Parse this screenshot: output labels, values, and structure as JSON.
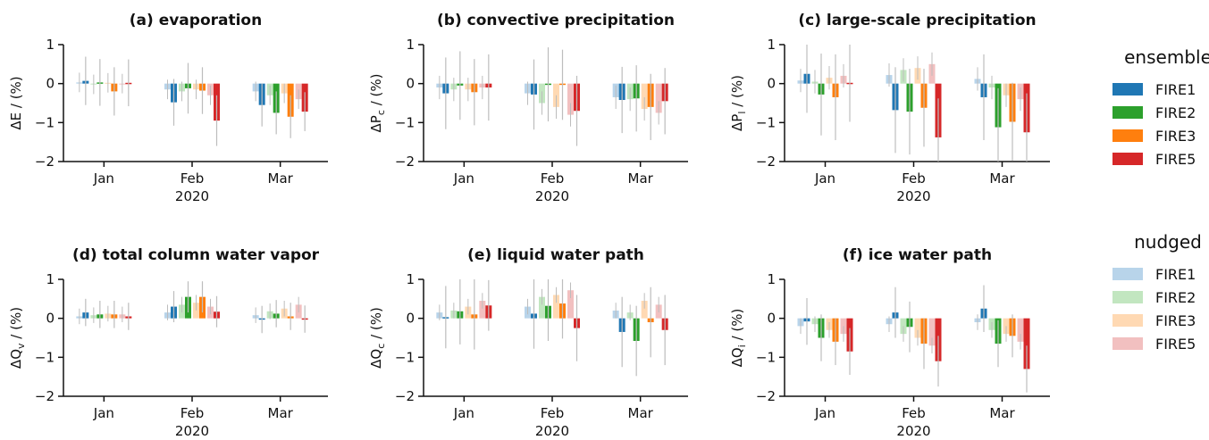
{
  "chart_data": [
    {
      "type": "bar",
      "title": "(a) evaporation",
      "ylabel": "ΔE / (%)",
      "ylim": [
        -2,
        1
      ],
      "yticks": [
        "−2",
        "−1",
        "0",
        "1"
      ],
      "categories": [
        "Jan",
        "Feb",
        "Mar"
      ],
      "year_label": "2020",
      "ensemble": [
        [
          0.07,
          0.03,
          -0.2,
          0.02
        ],
        [
          -0.48,
          -0.12,
          -0.18,
          -0.95
        ],
        [
          -0.55,
          -0.75,
          -0.85,
          -0.72
        ]
      ],
      "ensemble_err": [
        [
          0.62,
          0.6,
          0.62,
          0.6
        ],
        [
          0.6,
          0.65,
          0.6,
          0.65
        ],
        [
          0.55,
          0.55,
          0.55,
          0.5
        ]
      ],
      "nudged": [
        [
          0.03,
          -0.02,
          0.02,
          0.0
        ],
        [
          -0.15,
          -0.2,
          -0.15,
          -0.3
        ],
        [
          -0.2,
          -0.3,
          -0.25,
          -0.4
        ]
      ],
      "nudged_err": [
        [
          0.25,
          0.25,
          0.25,
          0.25
        ],
        [
          0.25,
          0.25,
          0.25,
          0.25
        ],
        [
          0.25,
          0.25,
          0.25,
          0.25
        ]
      ]
    },
    {
      "type": "bar",
      "title": "(b) convective precipitation",
      "ylabel": "ΔP_c / (%)",
      "ylim": [
        -2,
        1
      ],
      "yticks": [
        "−2",
        "−1",
        "0",
        "1"
      ],
      "categories": [
        "Jan",
        "Feb",
        "Mar"
      ],
      "year_label": "2020",
      "ensemble": [
        [
          -0.25,
          -0.05,
          -0.22,
          -0.1
        ],
        [
          -0.28,
          -0.02,
          -0.03,
          -0.7
        ],
        [
          -0.42,
          -0.38,
          -0.6,
          -0.45
        ]
      ],
      "ensemble_err": [
        [
          0.92,
          0.88,
          0.85,
          0.85
        ],
        [
          0.9,
          0.95,
          0.9,
          0.9
        ],
        [
          0.85,
          0.85,
          0.85,
          0.85
        ]
      ],
      "nudged": [
        [
          -0.1,
          -0.15,
          -0.15,
          -0.1
        ],
        [
          -0.25,
          -0.5,
          -0.6,
          -0.8
        ],
        [
          -0.35,
          -0.4,
          -0.65,
          -0.75
        ]
      ],
      "nudged_err": [
        [
          0.3,
          0.3,
          0.3,
          0.3
        ],
        [
          0.3,
          0.3,
          0.3,
          0.3
        ],
        [
          0.3,
          0.3,
          0.3,
          0.3
        ]
      ]
    },
    {
      "type": "bar",
      "title": "(c) large-scale precipitation",
      "ylabel": "ΔP_l / (%)",
      "ylim": [
        -2,
        1
      ],
      "yticks": [
        "−2",
        "−1",
        "0",
        "1"
      ],
      "categories": [
        "Jan",
        "Feb",
        "Mar"
      ],
      "year_label": "2020",
      "ensemble": [
        [
          0.25,
          -0.28,
          -0.35,
          0.02
        ],
        [
          -0.68,
          -0.72,
          -0.62,
          -1.38
        ],
        [
          -0.35,
          -1.12,
          -0.98,
          -1.25
        ]
      ],
      "ensemble_err": [
        [
          1.0,
          1.05,
          1.1,
          1.0
        ],
        [
          1.1,
          1.1,
          1.0,
          1.0
        ],
        [
          1.1,
          1.0,
          1.0,
          1.0
        ]
      ],
      "nudged": [
        [
          0.08,
          0.05,
          0.15,
          0.2
        ],
        [
          0.22,
          0.35,
          0.4,
          0.5
        ],
        [
          0.12,
          -0.1,
          -0.3,
          -0.4
        ]
      ],
      "nudged_err": [
        [
          0.3,
          0.3,
          0.3,
          0.3
        ],
        [
          0.3,
          0.3,
          0.3,
          0.3
        ],
        [
          0.3,
          0.3,
          0.3,
          0.3
        ]
      ]
    },
    {
      "type": "bar",
      "title": "(d) total column water vapor",
      "ylabel": "ΔQ_v / (%)",
      "ylim": [
        -2,
        1
      ],
      "yticks": [
        "−2",
        "−1",
        "0",
        "1"
      ],
      "categories": [
        "Jan",
        "Feb",
        "Mar"
      ],
      "year_label": "2020",
      "ensemble": [
        [
          0.15,
          0.1,
          0.1,
          0.05
        ],
        [
          0.3,
          0.55,
          0.55,
          0.17
        ],
        [
          -0.03,
          0.12,
          0.05,
          -0.02
        ]
      ],
      "ensemble_err": [
        [
          0.35,
          0.35,
          0.35,
          0.35
        ],
        [
          0.4,
          0.4,
          0.4,
          0.4
        ],
        [
          0.35,
          0.35,
          0.35,
          0.35
        ]
      ],
      "nudged": [
        [
          0.05,
          0.08,
          0.12,
          0.1
        ],
        [
          0.15,
          0.35,
          0.4,
          0.3
        ],
        [
          0.08,
          0.18,
          0.25,
          0.35
        ]
      ],
      "nudged_err": [
        [
          0.2,
          0.2,
          0.2,
          0.2
        ],
        [
          0.2,
          0.2,
          0.2,
          0.2
        ],
        [
          0.2,
          0.2,
          0.2,
          0.2
        ]
      ]
    },
    {
      "type": "bar",
      "title": "(e) liquid water path",
      "ylabel": "ΔQ_c / (%)",
      "ylim": [
        -2,
        1
      ],
      "yticks": [
        "−2",
        "−1",
        "0",
        "1"
      ],
      "categories": [
        "Jan",
        "Feb",
        "Mar"
      ],
      "year_label": "2020",
      "ensemble": [
        [
          0.03,
          0.18,
          0.1,
          0.33
        ],
        [
          0.12,
          0.32,
          0.38,
          -0.25
        ],
        [
          -0.35,
          -0.58,
          -0.1,
          -0.3
        ]
      ],
      "ensemble_err": [
        [
          0.8,
          0.85,
          0.9,
          0.65
        ],
        [
          0.9,
          0.9,
          0.9,
          0.85
        ],
        [
          0.9,
          0.9,
          0.9,
          0.9
        ]
      ],
      "nudged": [
        [
          0.15,
          0.2,
          0.3,
          0.45
        ],
        [
          0.3,
          0.55,
          0.6,
          0.72
        ],
        [
          0.2,
          0.15,
          0.45,
          0.35
        ]
      ],
      "nudged_err": [
        [
          0.2,
          0.2,
          0.2,
          0.2
        ],
        [
          0.2,
          0.2,
          0.2,
          0.2
        ],
        [
          0.2,
          0.2,
          0.2,
          0.2
        ]
      ]
    },
    {
      "type": "bar",
      "title": "(f) ice water path",
      "ylabel": "ΔQ_i / (%)",
      "ylim": [
        -2,
        1
      ],
      "yticks": [
        "−2",
        "−1",
        "0",
        "1"
      ],
      "categories": [
        "Jan",
        "Feb",
        "Mar"
      ],
      "year_label": "2020",
      "ensemble": [
        [
          -0.08,
          -0.5,
          -0.6,
          -0.85
        ],
        [
          0.15,
          -0.22,
          -0.65,
          -1.1
        ],
        [
          0.25,
          -0.65,
          -0.45,
          -1.3
        ]
      ],
      "ensemble_err": [
        [
          0.6,
          0.6,
          0.6,
          0.6
        ],
        [
          0.65,
          0.65,
          0.65,
          0.65
        ],
        [
          0.6,
          0.6,
          0.55,
          0.6
        ]
      ],
      "nudged": [
        [
          -0.2,
          -0.15,
          -0.3,
          -0.4
        ],
        [
          -0.15,
          -0.4,
          -0.5,
          -0.7
        ],
        [
          -0.1,
          -0.3,
          -0.4,
          -0.6
        ]
      ],
      "nudged_err": [
        [
          0.2,
          0.2,
          0.2,
          0.2
        ],
        [
          0.2,
          0.2,
          0.2,
          0.2
        ],
        [
          0.2,
          0.2,
          0.2,
          0.2
        ]
      ]
    }
  ],
  "legend": {
    "ensemble": {
      "title": "ensemble",
      "items": [
        {
          "label": "FIRE1",
          "color": "#1f77b4"
        },
        {
          "label": "FIRE2",
          "color": "#2ca02c"
        },
        {
          "label": "FIRE3",
          "color": "#ff7f0e"
        },
        {
          "label": "FIRE5",
          "color": "#d62728"
        }
      ]
    },
    "nudged": {
      "title": "nudged",
      "items": [
        {
          "label": "FIRE1",
          "color": "#b8d4ea"
        },
        {
          "label": "FIRE2",
          "color": "#c2e6c0"
        },
        {
          "label": "FIRE3",
          "color": "#ffd9b3"
        },
        {
          "label": "FIRE5",
          "color": "#f2c0c0"
        }
      ]
    }
  },
  "colors": {
    "ensemble": [
      "#1f77b4",
      "#2ca02c",
      "#ff7f0e",
      "#d62728"
    ],
    "nudged": [
      "#b8d4ea",
      "#c2e6c0",
      "#ffd9b3",
      "#f2c0c0"
    ],
    "errorbar": "#bdbdbd"
  }
}
